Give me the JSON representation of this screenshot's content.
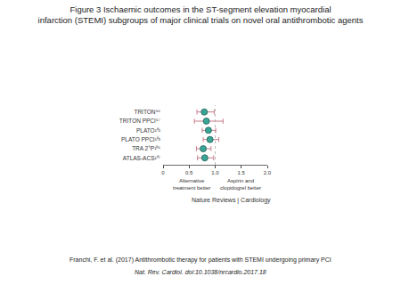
{
  "chart_data": {
    "type": "forest",
    "title": "Figure 3 Ischaemic outcomes in the ST-segment elevation myocardial\ninfarction (STEMI) subgroups of major clinical trials on novel oral antithrombotic agents",
    "categories": [
      "TRITON⁹⁶",
      "TRITON PPCI⁹⁷",
      "PLATO¹⁰²",
      "PLATO PPCI¹⁰³",
      "TRA 2°P¹⁰⁵",
      "ATLAS-ACS¹⁰⁷"
    ],
    "values": [
      0.79,
      0.83,
      0.87,
      0.9,
      0.77,
      0.8
    ],
    "lower": [
      0.65,
      0.6,
      0.75,
      0.77,
      0.64,
      0.66
    ],
    "upper": [
      0.98,
      1.15,
      1.01,
      1.07,
      0.92,
      0.97
    ],
    "color": "#3aa596",
    "reference": 1,
    "xlim": [
      0,
      2
    ],
    "xticks": [
      0,
      0.5,
      {
        "value": 1,
        "label": "1.0"
      },
      1.5,
      {
        "value": 2,
        "label": "2.0"
      }
    ],
    "annotations": [
      "Alternative\ntreatment better",
      "Aspirin and\nclopidogrel better"
    ],
    "source": "Nature Reviews | Cardiology",
    "caption": [
      "Franchi, F. et al. (2017) Antithrombotic therapy for patients with STEMI undergoing primary PCI",
      "Nat. Rev. Cardiol. doi:10.1038/nrcardio.2017.18"
    ],
    "grid": false
  }
}
